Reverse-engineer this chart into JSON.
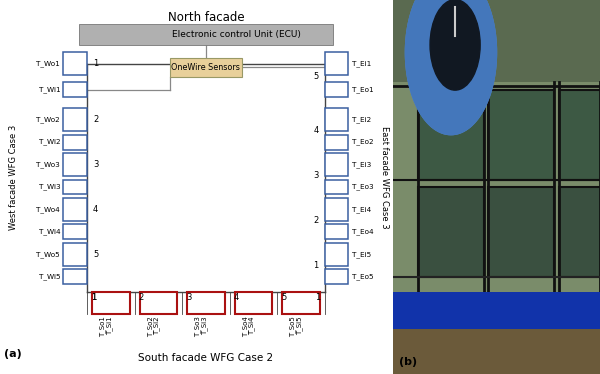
{
  "title_a": "(a)",
  "title_b": "(b)",
  "north_label": "North facade",
  "south_label": "South facade WFG Case 2",
  "west_label": "West facade WFG Case 3",
  "east_label": "East facade WFG Case 3",
  "ecu_label": "Electronic control Unit (ECU)",
  "onewire_label": "OneWire Sensors",
  "west_sensors_outer": [
    "T_Wo1",
    "T_Wo2",
    "T_Wo3",
    "T_Wo4",
    "T_Wo5"
  ],
  "west_sensors_inner": [
    "T_Wi1",
    "T_Wi2",
    "T_Wi3",
    "T_Wi4",
    "T_Wi5"
  ],
  "east_sensors_ei": [
    "T_Ei1",
    "T_Ei2",
    "T_Ei3",
    "T_Ei4",
    "T_Ei5"
  ],
  "east_sensors_eo": [
    "T_Eo1",
    "T_Eo2",
    "T_Eo3",
    "T_Eo4",
    "T_Eo5"
  ],
  "south_sensors_outer": [
    "T_So1",
    "T_So2",
    "T_So3",
    "T_So4",
    "T_So5"
  ],
  "south_sensors_inner": [
    "T_Si1",
    "T_Si2",
    "T_Si3",
    "T_Si4",
    "T_Si5"
  ],
  "blue_color": "#3a5fa0",
  "red_color": "#aa1111",
  "gray_color": "#888888",
  "ecu_gray": "#aaaaaa",
  "onewire_color": "#e8d09a",
  "bg_color": "#ffffff",
  "line_color": "#444444"
}
